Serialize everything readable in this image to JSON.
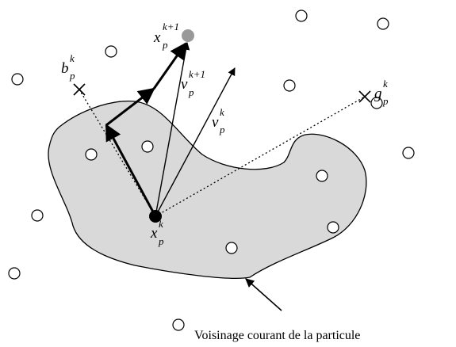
{
  "labels": {
    "x_next": {
      "base": "x",
      "sup": "k+1",
      "sub": "p"
    },
    "b": {
      "base": "b",
      "sup": "k",
      "sub": "p"
    },
    "v_next": {
      "base": "v",
      "sup": "k+1",
      "sub": "p"
    },
    "v": {
      "base": "v",
      "sup": "k",
      "sub": "p"
    },
    "g": {
      "base": "g",
      "sup": "k",
      "sub": "p"
    },
    "x": {
      "base": "x",
      "sup": "k",
      "sub": "p"
    }
  },
  "caption": "Voisinage courant de la particule"
}
